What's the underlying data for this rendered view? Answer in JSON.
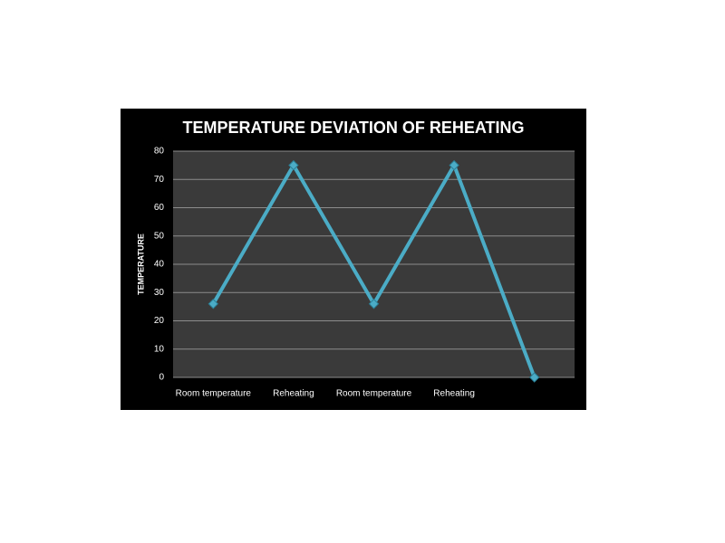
{
  "chart_data": {
    "type": "line",
    "title": "TEMPERATURE DEVIATION OF REHEATING",
    "y_label": "TEMPERATURE",
    "categories": [
      "Room temperature",
      "Reheating",
      "Room temperature",
      "Reheating",
      null
    ],
    "values": [
      26,
      75,
      26,
      75,
      0
    ],
    "color": "#4bacc6",
    "ylim": [
      0,
      80
    ],
    "yticks": [
      0,
      10,
      20,
      30,
      40,
      50,
      60,
      70,
      80
    ],
    "grid": true
  }
}
